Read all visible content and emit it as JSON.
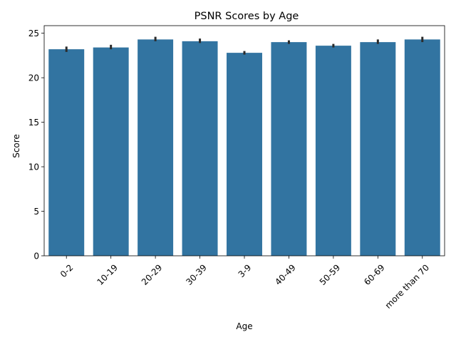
{
  "chart_data": {
    "type": "bar",
    "title": "PSNR Scores by Age",
    "xlabel": "Age",
    "ylabel": "Score",
    "categories": [
      "0-2",
      "10-19",
      "20-29",
      "30-39",
      "3-9",
      "40-49",
      "50-59",
      "60-69",
      "more than 70"
    ],
    "values": [
      23.2,
      23.4,
      24.3,
      24.1,
      22.8,
      24.0,
      23.6,
      24.0,
      24.3
    ],
    "error_low": [
      22.9,
      23.2,
      24.1,
      23.9,
      22.6,
      23.8,
      23.4,
      23.8,
      24.0
    ],
    "error_high": [
      23.5,
      23.7,
      24.6,
      24.4,
      23.0,
      24.2,
      23.8,
      24.3,
      24.6
    ],
    "ylim": [
      0,
      25.85
    ],
    "yticks": [
      0,
      5,
      10,
      15,
      20,
      25
    ],
    "bar_color": "#3274a1",
    "error_color": "#2b2b2b",
    "grid": false,
    "legend": "none"
  }
}
